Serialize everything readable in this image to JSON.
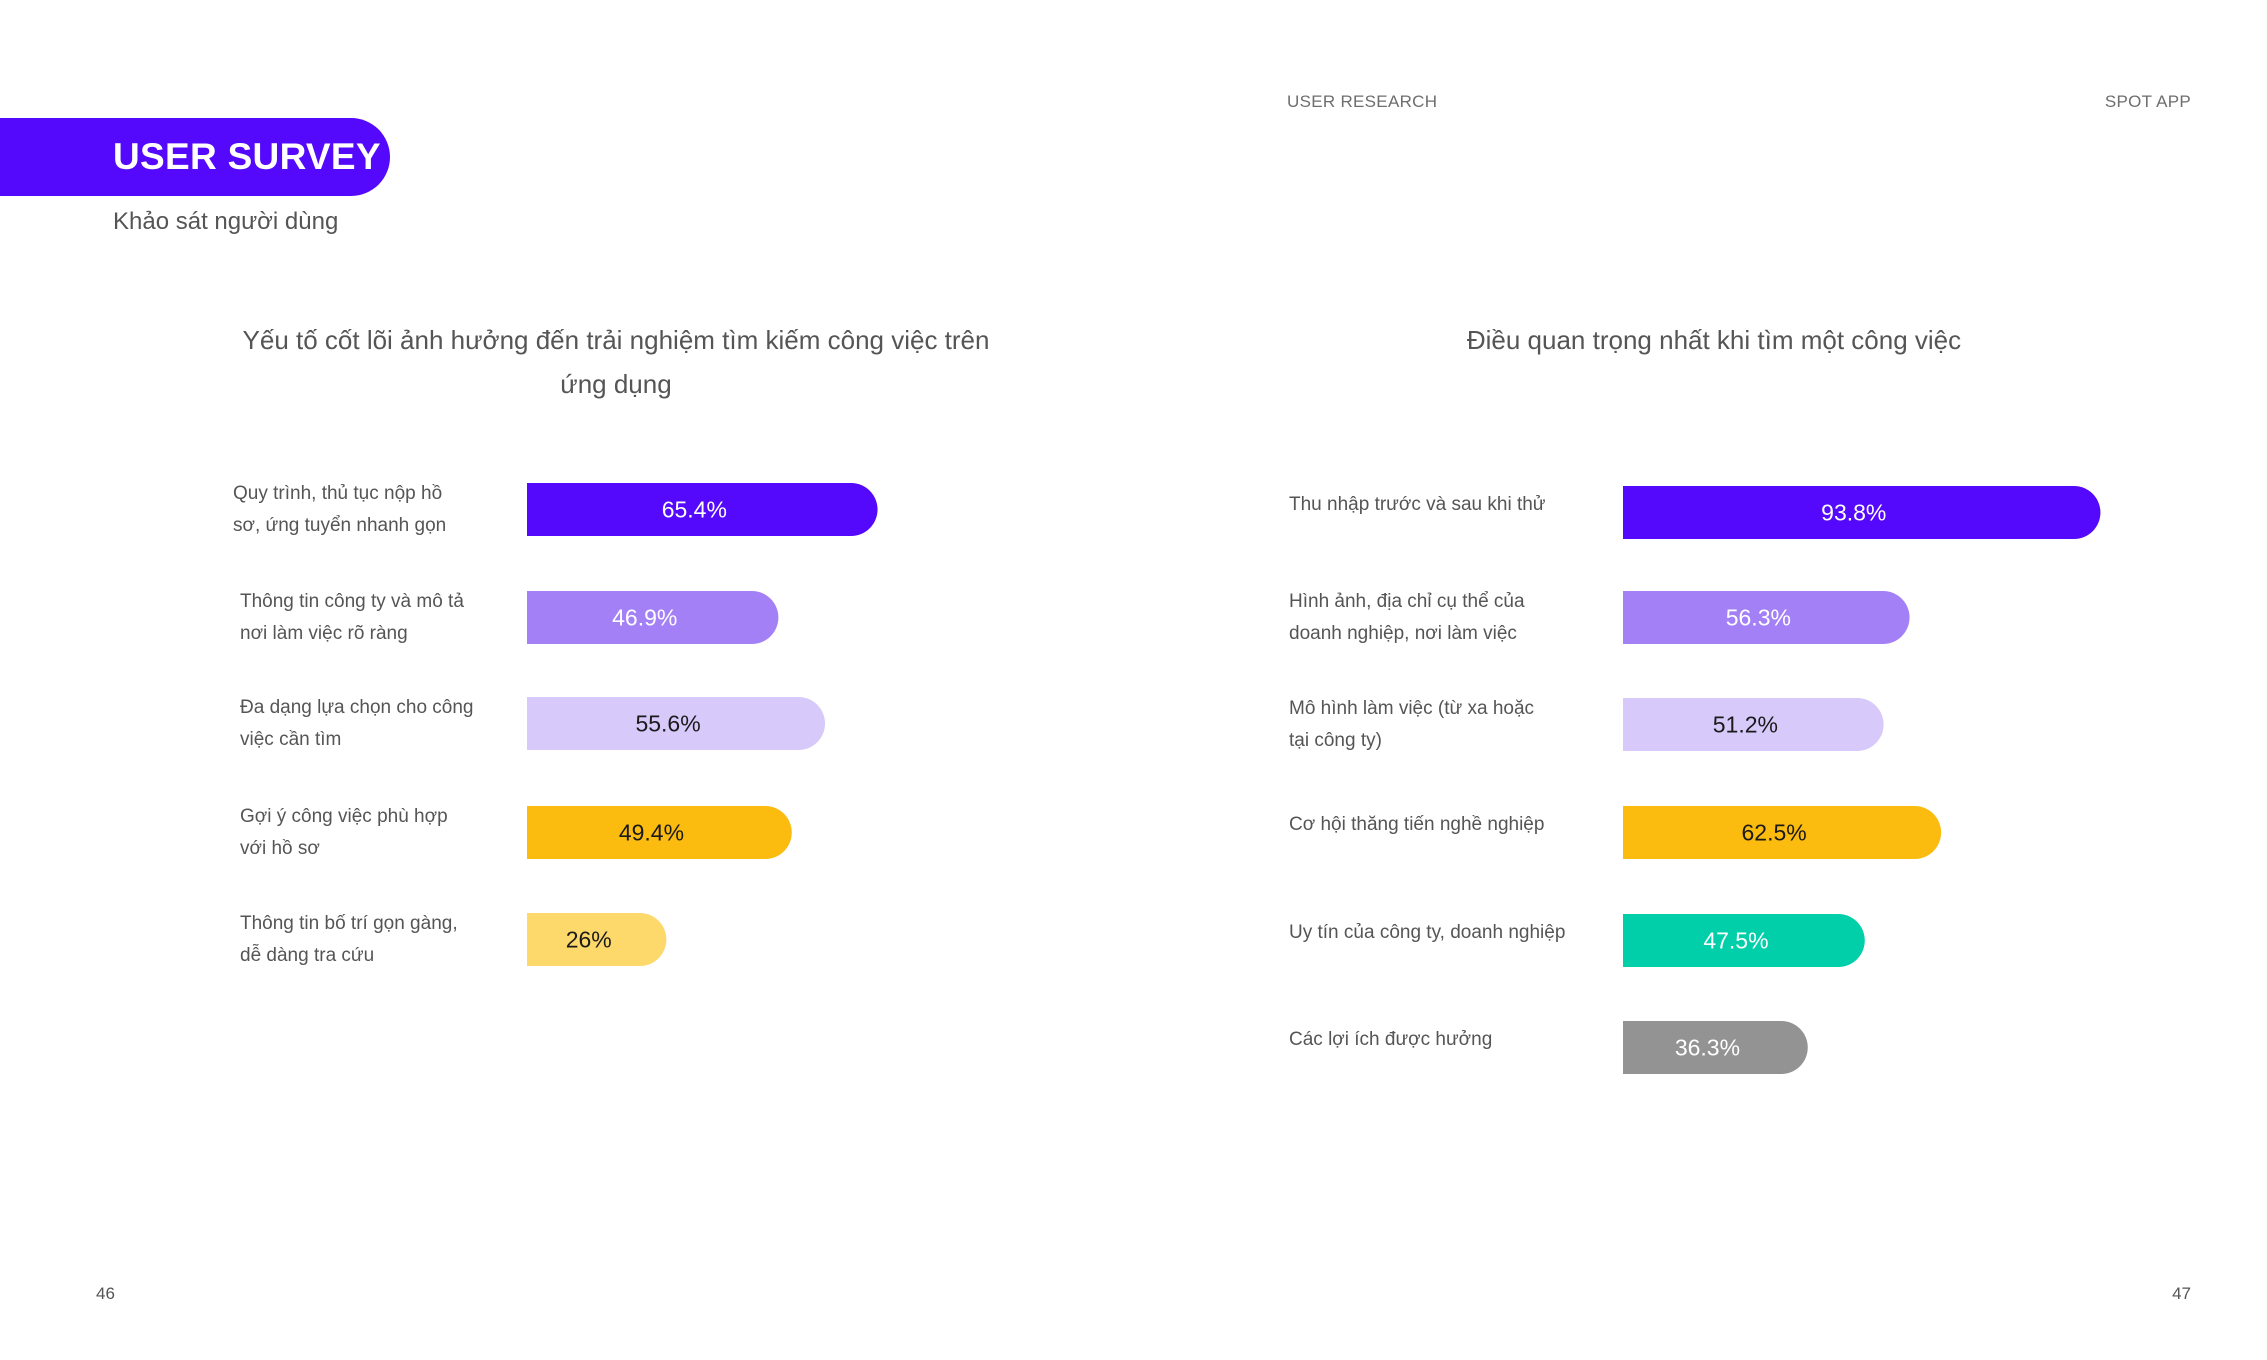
{
  "header": {
    "left_label": "USER RESEARCH",
    "right_label": "SPOT APP"
  },
  "section": {
    "title": "USER SURVEY",
    "subtitle": "Khảo sát người dùng"
  },
  "pages": {
    "left": "46",
    "right": "47"
  },
  "chart_data": [
    {
      "type": "bar",
      "orientation": "horizontal",
      "title_lines": [
        "Yếu tố cốt lõi ảnh hưởng đến trải nghiệm tìm kiếm công việc trên",
        "ứng dụng"
      ],
      "categories": [
        [
          "Quy trình, thủ tục nộp hồ",
          "sơ, ứng tuyển nhanh gọn"
        ],
        [
          "Thông tin công ty và mô tả",
          "nơi làm việc rõ ràng"
        ],
        [
          "Đa dạng lựa chọn cho công",
          "việc cần tìm"
        ],
        [
          "Gợi ý công việc phù hợp",
          "với hồ sơ"
        ],
        [
          "Thông tin bố trí gọn gàng,",
          "dễ dàng tra cứu"
        ]
      ],
      "values": [
        65.4,
        46.9,
        55.6,
        49.4,
        26
      ],
      "value_labels": [
        "65.4%",
        "46.9%",
        "55.6%",
        "49.4%",
        "26%"
      ],
      "colors": [
        "#5408fc",
        "#a480f7",
        "#d7c9fa",
        "#fcbb0f",
        "#fdd86b"
      ],
      "label_colors": [
        "#ffffff",
        "#ffffff",
        "#1a1a1a",
        "#1a1a1a",
        "#1a1a1a"
      ],
      "xlim": [
        0,
        100
      ],
      "grid": false,
      "legend": "none"
    },
    {
      "type": "bar",
      "orientation": "horizontal",
      "title_lines": [
        "Điều quan trọng nhất khi tìm một công việc"
      ],
      "categories": [
        [
          "Thu nhập trước và sau khi thử"
        ],
        [
          "Hình ảnh, địa chỉ cụ thể của",
          "doanh nghiệp, nơi làm việc"
        ],
        [
          "Mô hình làm việc (từ xa hoặc",
          "tại công ty)"
        ],
        [
          "Cơ hội thăng tiến nghề nghiệp"
        ],
        [
          "Uy tín của công ty, doanh nghiệp"
        ],
        [
          "Các lợi ích được hưởng"
        ]
      ],
      "values": [
        93.8,
        56.3,
        51.2,
        62.5,
        47.5,
        36.3
      ],
      "value_labels": [
        "93.8%",
        "56.3%",
        "51.2%",
        "62.5%",
        "47.5%",
        "36.3%"
      ],
      "colors": [
        "#5408fc",
        "#a480f7",
        "#d7c9fa",
        "#fcbb0f",
        "#00cfaa",
        "#939393"
      ],
      "label_colors": [
        "#ffffff",
        "#ffffff",
        "#1a1a1a",
        "#1a1a1a",
        "#ffffff",
        "#ffffff"
      ],
      "xlim": [
        0,
        100
      ],
      "grid": false,
      "legend": "none"
    }
  ]
}
